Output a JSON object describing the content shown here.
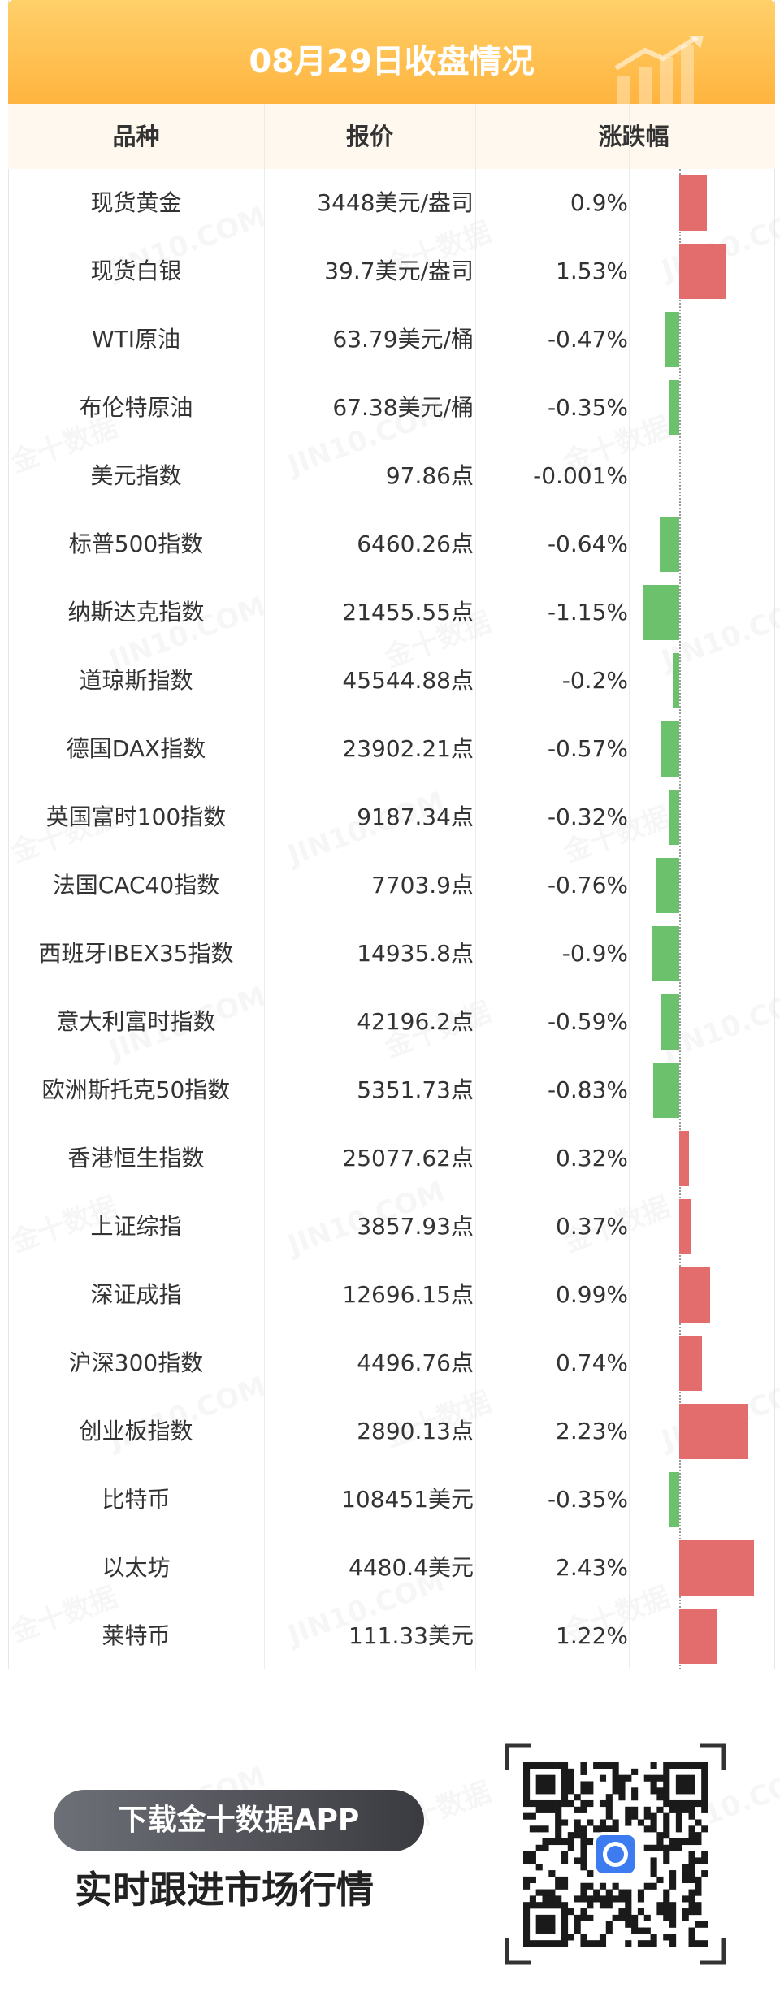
{
  "header": {
    "title": "08月29日收盘情况"
  },
  "table": {
    "col_name": "品种",
    "col_price": "报价",
    "col_change": "涨跌幅"
  },
  "watermark": {
    "text_cn": "金十数据",
    "text_en": "JIN10.COM"
  },
  "footer": {
    "button_label": "下载金十数据APP",
    "subtitle": "实时跟进市场行情"
  },
  "colors": {
    "up": "#e36d6d",
    "down": "#6cc16c",
    "header": "#ffb43f"
  },
  "chart_data": {
    "type": "bar",
    "categories": [
      "现货黄金",
      "现货白银",
      "WTI原油",
      "布伦特原油",
      "美元指数",
      "标普500指数",
      "纳斯达克指数",
      "道琼斯指数",
      "德国DAX指数",
      "英国富时100指数",
      "法国CAC40指数",
      "西班牙IBEX35指数",
      "意大利富时指数",
      "欧洲斯托克50指数",
      "香港恒生指数",
      "上证综指",
      "深证成指",
      "沪深300指数",
      "创业板指数",
      "比特币",
      "以太坊",
      "莱特币"
    ],
    "prices": [
      "3448美元/盎司",
      "39.7美元/盎司",
      "63.79美元/桶",
      "67.38美元/桶",
      "97.86点",
      "6460.26点",
      "21455.55点",
      "45544.88点",
      "23902.21点",
      "9187.34点",
      "7703.9点",
      "14935.8点",
      "42196.2点",
      "5351.73点",
      "25077.62点",
      "3857.93点",
      "12696.15点",
      "4496.76点",
      "2890.13点",
      "108451美元",
      "4480.4美元",
      "111.33美元"
    ],
    "change_labels": [
      "0.9%",
      "1.53%",
      "-0.47%",
      "-0.35%",
      "-0.001%",
      "-0.64%",
      "-1.15%",
      "-0.2%",
      "-0.57%",
      "-0.32%",
      "-0.76%",
      "-0.9%",
      "-0.59%",
      "-0.83%",
      "0.32%",
      "0.37%",
      "0.99%",
      "0.74%",
      "2.23%",
      "-0.35%",
      "2.43%",
      "1.22%"
    ],
    "values": [
      0.9,
      1.53,
      -0.47,
      -0.35,
      -0.001,
      -0.64,
      -1.15,
      -0.2,
      -0.57,
      -0.32,
      -0.76,
      -0.9,
      -0.59,
      -0.83,
      0.32,
      0.37,
      0.99,
      0.74,
      2.23,
      -0.35,
      2.43,
      1.22
    ]
  }
}
